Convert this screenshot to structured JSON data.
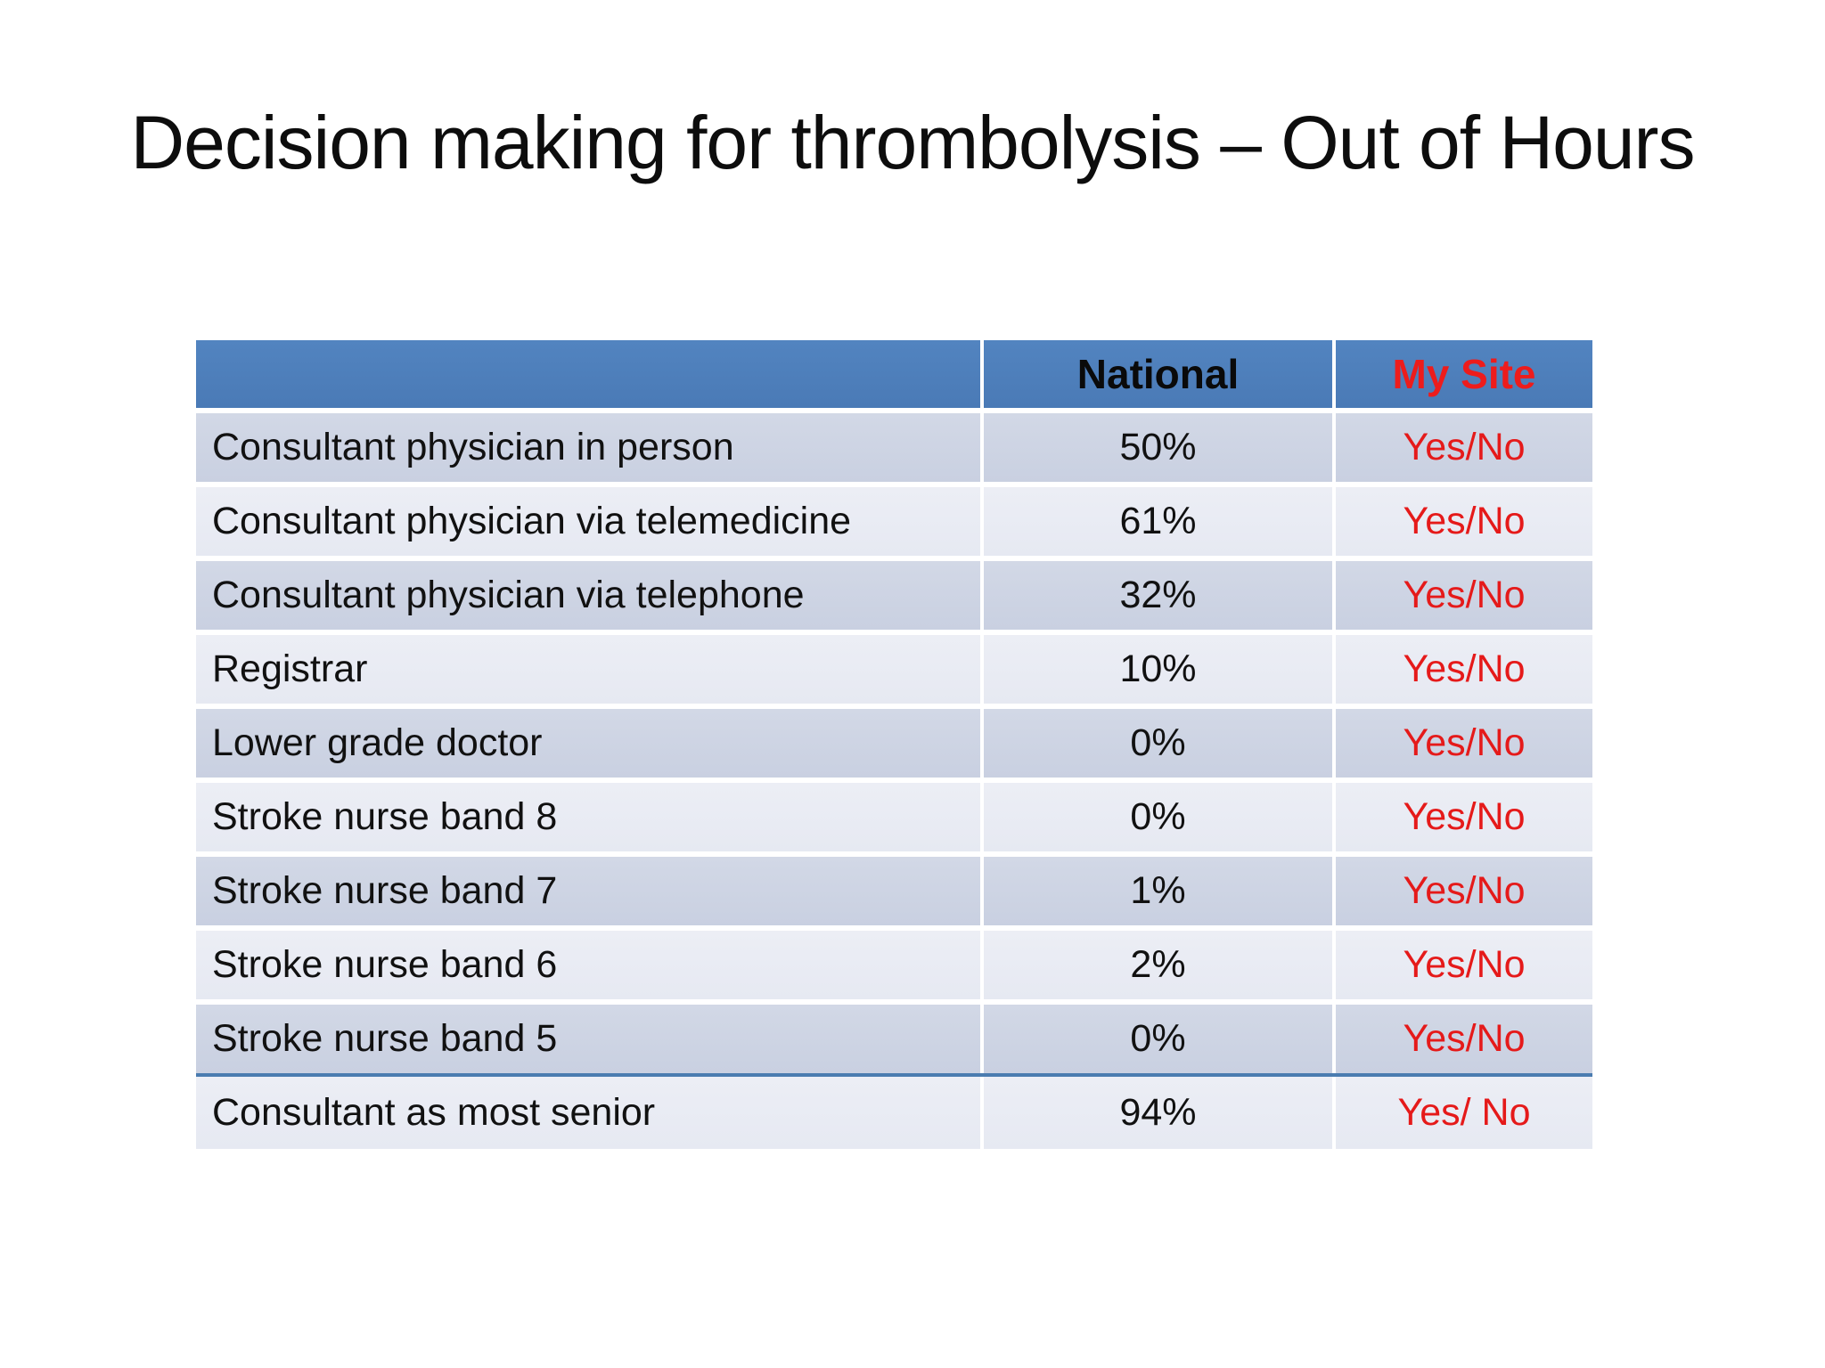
{
  "slide": {
    "title": "Decision making for thrombolysis – Out of Hours"
  },
  "table": {
    "header": {
      "label": "",
      "national": "National",
      "my_site": "My Site"
    },
    "rows": [
      {
        "label": "Consultant physician in person",
        "national": "50%",
        "my_site": "Yes/No"
      },
      {
        "label": "Consultant physician via telemedicine",
        "national": "61%",
        "my_site": "Yes/No"
      },
      {
        "label": "Consultant physician via telephone",
        "national": "32%",
        "my_site": "Yes/No"
      },
      {
        "label": "Registrar",
        "national": "10%",
        "my_site": "Yes/No"
      },
      {
        "label": "Lower grade doctor",
        "national": "0%",
        "my_site": "Yes/No"
      },
      {
        "label": "Stroke nurse band 8",
        "national": "0%",
        "my_site": "Yes/No"
      },
      {
        "label": "Stroke nurse band 7",
        "national": "1%",
        "my_site": "Yes/No"
      },
      {
        "label": "Stroke nurse band 6",
        "national": "2%",
        "my_site": "Yes/No"
      },
      {
        "label": "Stroke nurse band 5",
        "national": "0%",
        "my_site": "Yes/No"
      },
      {
        "label": "Consultant as most senior",
        "national": "94%",
        "my_site": "Yes/ No"
      }
    ],
    "colors": {
      "header_bg": "#4d80bc",
      "row_band_dark": "#ccd3e3",
      "row_band_light": "#e9ebf3",
      "separator_line": "#4a7cb0",
      "accent_red": "#ed1c1c",
      "body_text": "#111111",
      "header_text": "#0a0a0a",
      "slide_background": "#ffffff"
    }
  }
}
